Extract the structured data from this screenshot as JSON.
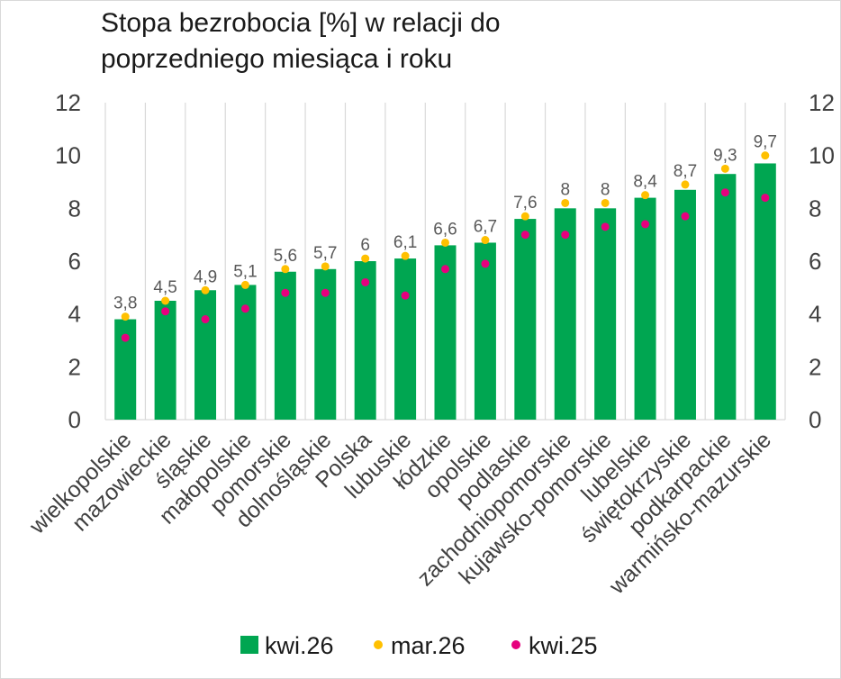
{
  "chart_data": {
    "type": "bar",
    "title_lines": [
      "Stopa bezrobocia [%] w relacji do",
      "poprzedniego miesiąca i roku"
    ],
    "categories": [
      "wielkopolskie",
      "mazowieckie",
      "śląskie",
      "małopolskie",
      "pomorskie",
      "dolnośląskie",
      "Polska",
      "lubuskie",
      "łódzkie",
      "opolskie",
      "podlaskie",
      "zachodniopomorskie",
      "kujawsko-pomorskie",
      "lubelskie",
      "świętokrzyskie",
      "podkarpackie",
      "warmińsko-mazurskie"
    ],
    "series": [
      {
        "name": "kwi.26",
        "kind": "bar",
        "color": "#00a651",
        "values": [
          3.8,
          4.5,
          4.9,
          5.1,
          5.6,
          5.7,
          6,
          6.1,
          6.6,
          6.7,
          7.6,
          8,
          8,
          8.4,
          8.7,
          9.3,
          9.7
        ]
      },
      {
        "name": "mar.26",
        "kind": "dot",
        "color": "#ffc000",
        "values": [
          3.9,
          4.5,
          4.9,
          5.1,
          5.7,
          5.8,
          6.1,
          6.2,
          6.7,
          6.8,
          7.7,
          8.2,
          8.2,
          8.5,
          8.9,
          9.5,
          10.0
        ]
      },
      {
        "name": "kwi.25",
        "kind": "dot",
        "color": "#e6007e",
        "values": [
          3.1,
          4.1,
          3.8,
          4.2,
          4.8,
          4.8,
          5.2,
          4.7,
          5.7,
          5.9,
          7.0,
          7.0,
          7.3,
          7.4,
          7.7,
          8.6,
          8.4
        ]
      }
    ],
    "data_labels": [
      "3,8",
      "4,5",
      "4,9",
      "5,1",
      "5,6",
      "5,7",
      "6",
      "6,1",
      "6,6",
      "6,7",
      "7,6",
      "8",
      "8",
      "8,4",
      "8,7",
      "9,3",
      "9,7"
    ],
    "yticks": [
      "0",
      "2",
      "4",
      "6",
      "8",
      "10",
      "12"
    ],
    "ylim": [
      0,
      12
    ],
    "grid": "vertical",
    "legend": "bottom",
    "colors": {
      "bar": "#00a651",
      "prev_month": "#ffc000",
      "prev_year": "#e6007e",
      "grid": "#d9d9d9"
    }
  }
}
